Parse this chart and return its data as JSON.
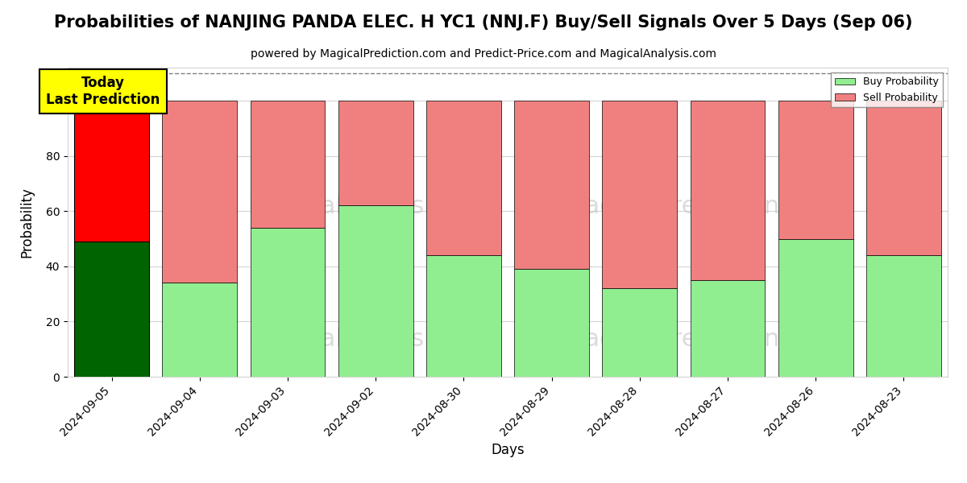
{
  "title": "Probabilities of NANJING PANDA ELEC. H YC1 (NNJ.F) Buy/Sell Signals Over 5 Days (Sep 06)",
  "subtitle": "powered by MagicalPrediction.com and Predict-Price.com and MagicalAnalysis.com",
  "xlabel": "Days",
  "ylabel": "Probability",
  "categories": [
    "2024-09-05",
    "2024-09-04",
    "2024-09-03",
    "2024-09-02",
    "2024-08-30",
    "2024-08-29",
    "2024-08-28",
    "2024-08-27",
    "2024-08-26",
    "2024-08-23"
  ],
  "buy_values": [
    49,
    34,
    54,
    62,
    44,
    39,
    32,
    35,
    50,
    44
  ],
  "sell_values": [
    51,
    66,
    46,
    38,
    56,
    61,
    68,
    65,
    50,
    56
  ],
  "today_buy_color": "#006400",
  "today_sell_color": "#FF0000",
  "buy_color": "#90EE90",
  "sell_color": "#F08080",
  "today_annotation_bg": "#FFFF00",
  "today_annotation_text": "Today\nLast Prediction",
  "legend_buy": "Buy Probability",
  "legend_sell": "Sell Probability",
  "ylim": [
    0,
    112
  ],
  "dashed_line_y": 110,
  "title_fontsize": 15,
  "subtitle_fontsize": 10,
  "axis_label_fontsize": 12
}
